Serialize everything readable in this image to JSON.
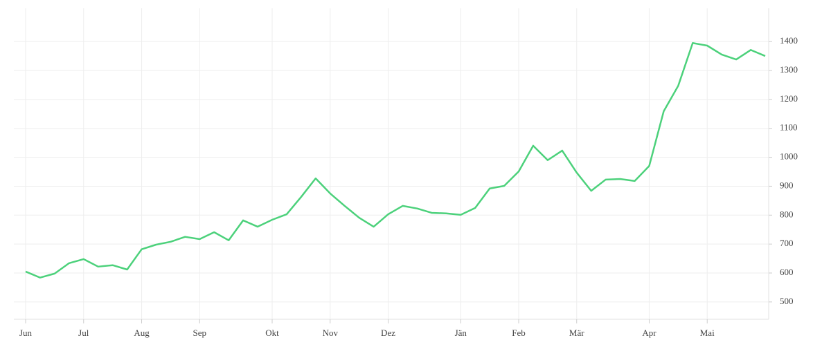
{
  "chart_data": {
    "type": "line",
    "categories": [
      "Jun",
      null,
      null,
      null,
      "Jul",
      null,
      null,
      null,
      "Aug",
      null,
      null,
      null,
      "Sep",
      null,
      null,
      null,
      null,
      "Okt",
      null,
      null,
      null,
      "Nov",
      null,
      null,
      null,
      "Dez",
      null,
      null,
      null,
      null,
      "Jän",
      null,
      null,
      null,
      "Feb",
      null,
      null,
      null,
      "Mär",
      null,
      null,
      null,
      null,
      "Apr",
      null,
      null,
      null,
      "Mai",
      null,
      null,
      null,
      null
    ],
    "series": [
      {
        "color": "#4cd17b",
        "values": [
          605,
          584,
          598,
          634,
          648,
          622,
          627,
          612,
          682,
          698,
          708,
          725,
          717,
          741,
          713,
          782,
          760,
          784,
          803,
          863,
          927,
          875,
          832,
          791,
          760,
          803,
          832,
          823,
          808,
          806,
          801,
          825,
          892,
          901,
          951,
          1040,
          990,
          1023,
          947,
          884,
          923,
          925,
          918,
          970,
          1159,
          1247,
          1395,
          1386,
          1355,
          1338,
          1371,
          1350
        ]
      }
    ],
    "ylim": [
      440,
      1515
    ],
    "yticks": [
      500,
      600,
      700,
      800,
      900,
      1000,
      1100,
      1200,
      1300,
      1400
    ],
    "grid": true
  }
}
